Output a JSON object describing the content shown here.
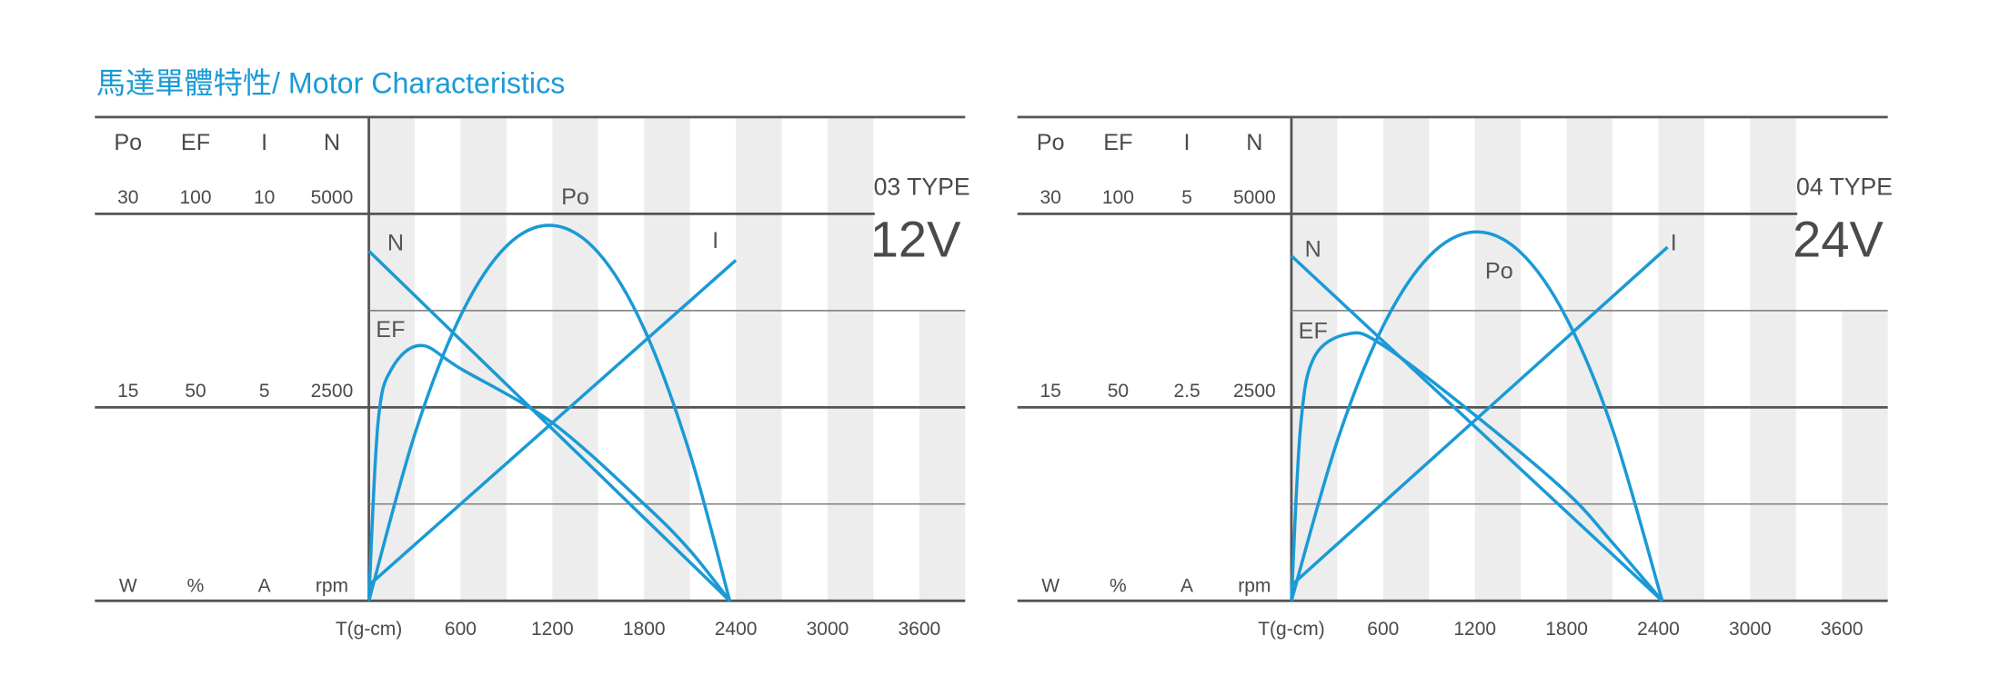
{
  "title": "馬達單體特性/ Motor Characteristics",
  "chart_data": [
    {
      "type": "line",
      "model": "03 TYPE",
      "voltage": "12V",
      "x_label": "T(g-cm)",
      "xlim": [
        0,
        3900
      ],
      "xticks": [
        600,
        1200,
        1800,
        2400,
        3000,
        3600
      ],
      "axes": [
        {
          "name": "Po",
          "unit": "W",
          "ylim": [
            0,
            30
          ],
          "yticks": [
            15,
            30
          ]
        },
        {
          "name": "EF",
          "unit": "%",
          "ylim": [
            0,
            100
          ],
          "yticks": [
            50,
            100
          ]
        },
        {
          "name": "I",
          "unit": "A",
          "ylim": [
            0,
            10
          ],
          "yticks": [
            5,
            10
          ]
        },
        {
          "name": "N",
          "unit": "rpm",
          "ylim": [
            0,
            5000
          ],
          "yticks": [
            2500,
            5000
          ]
        }
      ],
      "series": [
        {
          "name": "N",
          "axis": 3,
          "color": "#1a9ad6",
          "x": [
            0,
            2360
          ],
          "values": [
            4520,
            0
          ]
        },
        {
          "name": "I",
          "axis": 2,
          "color": "#1a9ad6",
          "x": [
            0,
            2400
          ],
          "values": [
            0.4,
            8.8
          ]
        },
        {
          "name": "Po",
          "axis": 0,
          "color": "#1a9ad6",
          "x": [
            0,
            300,
            600,
            900,
            1200,
            1500,
            1800,
            2100,
            2360
          ],
          "values": [
            0,
            12.9,
            22.1,
            27.5,
            29.1,
            27,
            21.1,
            11.4,
            0
          ]
        },
        {
          "name": "EF",
          "axis": 1,
          "color": "#1a9ad6",
          "x": [
            0,
            60,
            150,
            340,
            600,
            1200,
            1800,
            2100,
            2360
          ],
          "values": [
            0,
            46,
            60,
            66,
            60,
            46,
            25,
            13,
            0
          ]
        }
      ]
    },
    {
      "type": "line",
      "model": "04 TYPE",
      "voltage": "24V",
      "x_label": "T(g-cm)",
      "xlim": [
        0,
        3900
      ],
      "xticks": [
        600,
        1200,
        1800,
        2400,
        3000,
        3600
      ],
      "axes": [
        {
          "name": "Po",
          "unit": "W",
          "ylim": [
            0,
            30
          ],
          "yticks": [
            15,
            30
          ]
        },
        {
          "name": "EF",
          "unit": "%",
          "ylim": [
            0,
            100
          ],
          "yticks": [
            50,
            100
          ]
        },
        {
          "name": "I",
          "unit": "A",
          "ylim": [
            0,
            5
          ],
          "yticks": [
            2.5,
            5
          ]
        },
        {
          "name": "N",
          "unit": "rpm",
          "ylim": [
            0,
            5000
          ],
          "yticks": [
            2500,
            5000
          ]
        }
      ],
      "series": [
        {
          "name": "N",
          "axis": 3,
          "color": "#1a9ad6",
          "x": [
            0,
            2425
          ],
          "values": [
            4457,
            0
          ]
        },
        {
          "name": "I",
          "axis": 2,
          "color": "#1a9ad6",
          "x": [
            0,
            2460
          ],
          "values": [
            0.2,
            4.57
          ]
        },
        {
          "name": "Po",
          "axis": 0,
          "color": "#1a9ad6",
          "x": [
            0,
            300,
            600,
            900,
            1200,
            1500,
            1800,
            2100,
            2425
          ],
          "values": [
            0,
            12.4,
            21.3,
            26.7,
            28.6,
            27,
            21.9,
            13.3,
            0
          ]
        },
        {
          "name": "EF",
          "axis": 1,
          "color": "#1a9ad6",
          "x": [
            0,
            60,
            150,
            375,
            600,
            1200,
            1800,
            2100,
            2425
          ],
          "values": [
            0,
            45,
            63,
            69,
            66,
            48,
            28,
            15,
            0
          ]
        }
      ]
    }
  ]
}
